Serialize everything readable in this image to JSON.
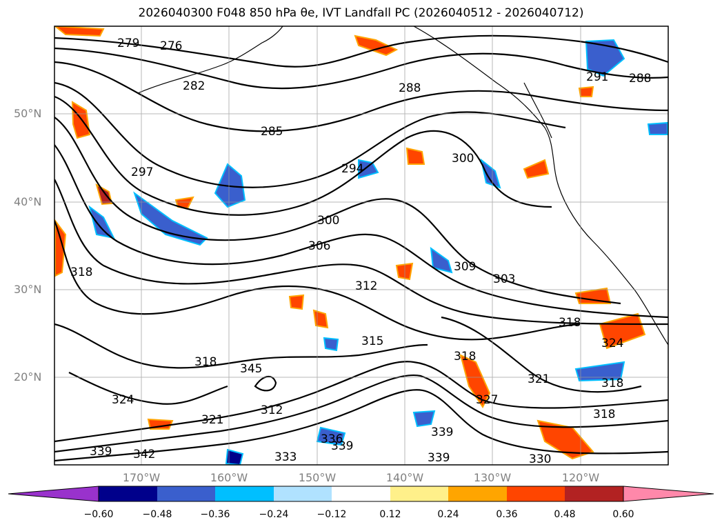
{
  "title": "2026040300 F048 850 hPa θe, IVT Landfall PC (2026040512 - 2026040712)",
  "map": {
    "lat_labels": [
      "50°N",
      "40°N",
      "30°N",
      "20°N"
    ],
    "lon_labels": [
      "170°W",
      "160°W",
      "150°W",
      "140°W",
      "130°W",
      "120°W"
    ],
    "contour_labels": [
      "279",
      "276",
      "282",
      "285",
      "288",
      "291",
      "294",
      "297",
      "300",
      "303",
      "306",
      "309",
      "312",
      "315",
      "318",
      "321",
      "324",
      "327",
      "330",
      "333",
      "336",
      "339",
      "342",
      "345"
    ]
  },
  "colorbar": {
    "ticks": [
      "−0.60",
      "−0.48",
      "−0.36",
      "−0.24",
      "−0.12",
      "0.12",
      "0.24",
      "0.36",
      "0.48",
      "0.60"
    ],
    "colors": [
      "#9932cc",
      "#00008b",
      "#3a5fcd",
      "#00bfff",
      "#b0e2ff",
      "#ffffff",
      "#fff08a",
      "#ffa500",
      "#ff4500",
      "#b22222",
      "#ff88aa"
    ]
  }
}
